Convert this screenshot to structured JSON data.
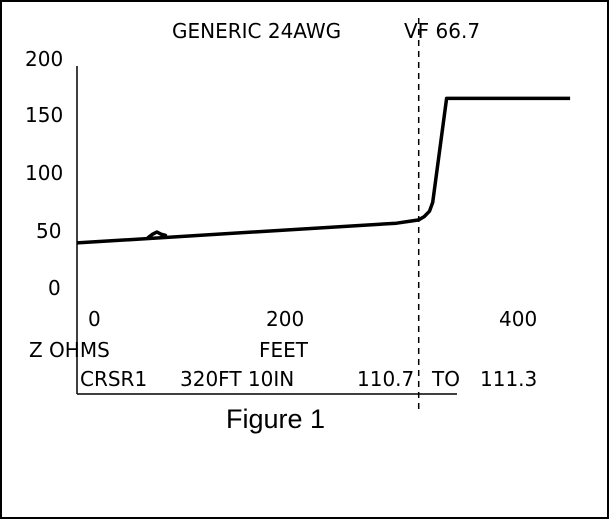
{
  "chart_data": {
    "type": "line",
    "header": {
      "cable_type": "GENERIC 24AWG",
      "velocity_factor": "VF 66.7"
    },
    "y_tick_labels": [
      "200",
      "150",
      "100",
      "50",
      "0"
    ],
    "y_ticks": [
      200,
      150,
      100,
      50,
      0
    ],
    "x_tick_labels": [
      "0",
      "200",
      "400"
    ],
    "x_ticks": [
      0,
      200,
      400
    ],
    "ylabel": "Z OHMS",
    "xlabel": "FEET",
    "ylim": [
      0,
      200
    ],
    "xlim": [
      0,
      463
    ],
    "cursor": {
      "label": "CRSR1",
      "distance": "320FT 10IN",
      "reading_from": "110.7",
      "reading_sep": "TO",
      "reading_to": "111.3",
      "x_feet": 320.8
    },
    "series": [
      {
        "x": [
          0,
          300,
          314,
          320.8,
          326,
          331,
          334,
          347,
          463
        ],
        "y": [
          43,
          61,
          63,
          64,
          67,
          72,
          80,
          175,
          175
        ]
      }
    ],
    "bump": {
      "x": [
        67,
        71,
        75,
        79,
        83
      ],
      "y": [
        48,
        51,
        53,
        51,
        50
      ]
    },
    "grid": false,
    "legend": "none",
    "line_color": "#000000",
    "figure_caption": "Figure 1"
  }
}
